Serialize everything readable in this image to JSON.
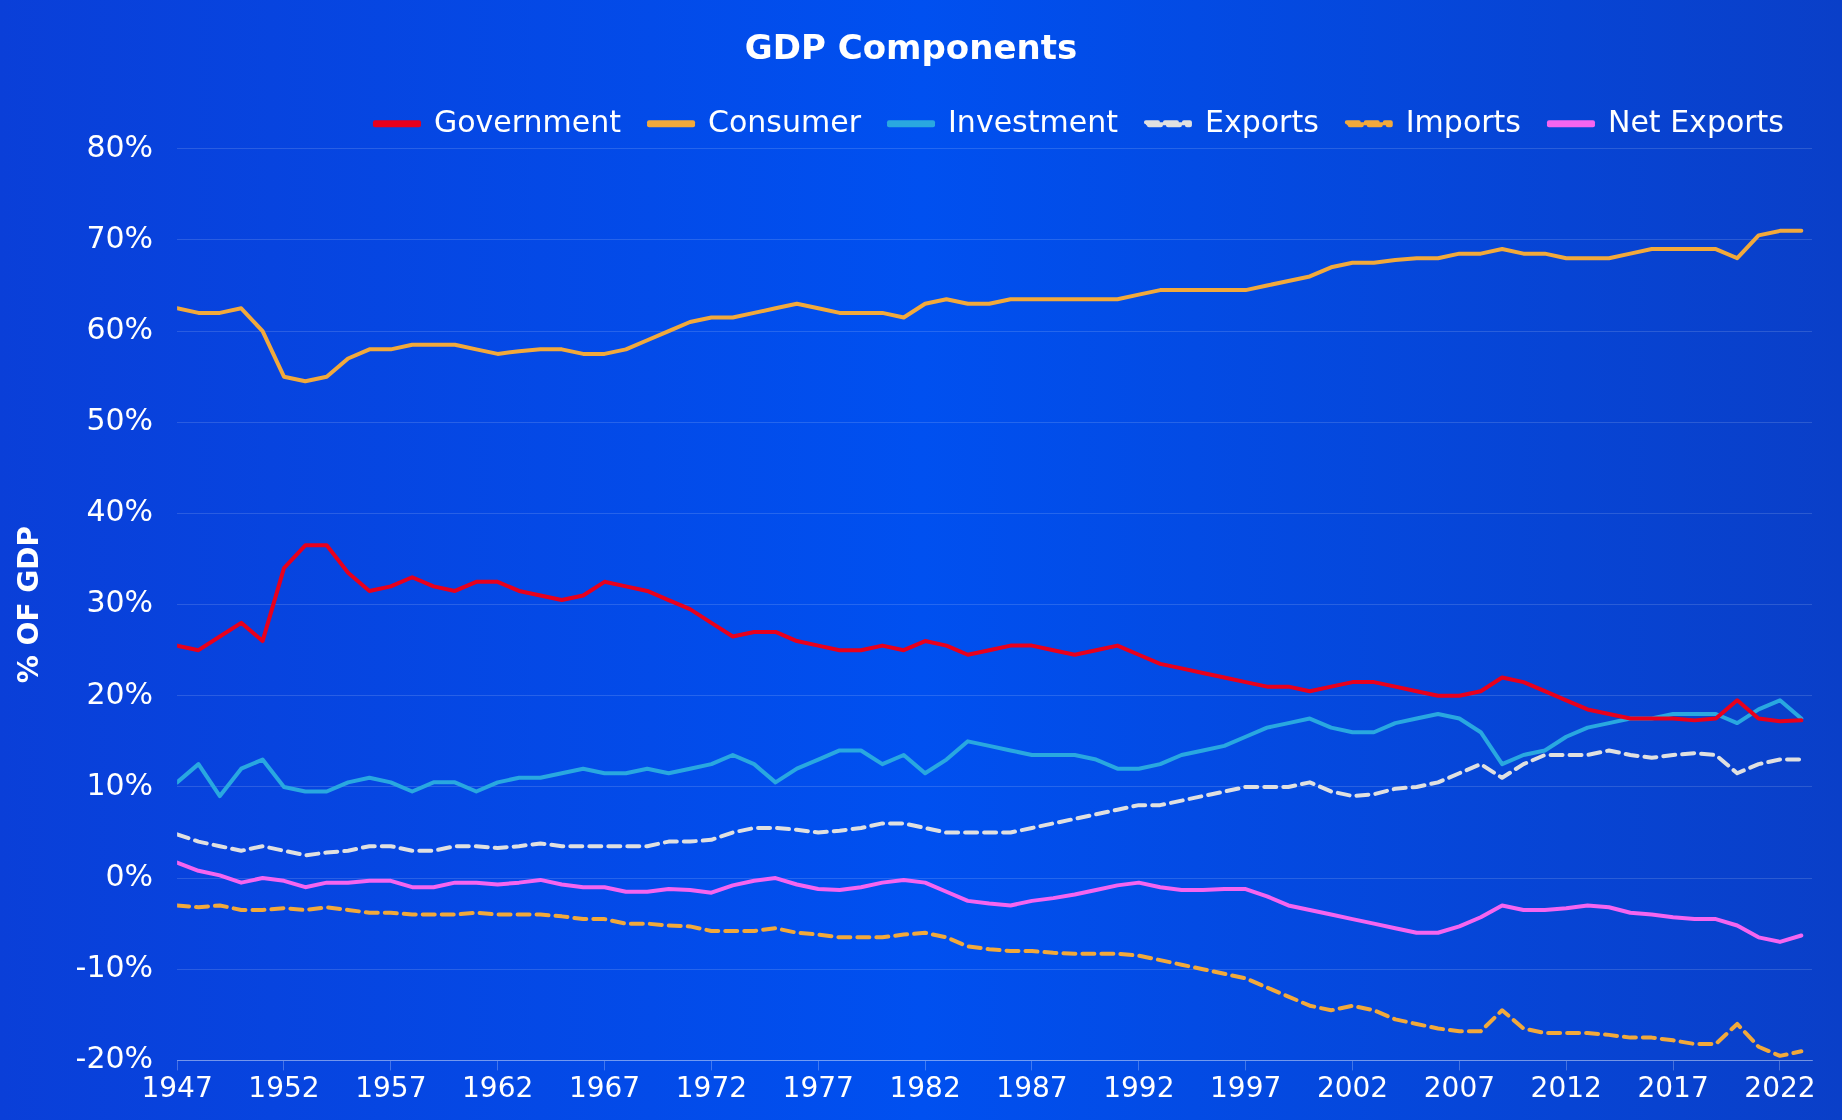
{
  "chart_data": {
    "type": "line",
    "title": "GDP Components",
    "ylabel": "% OF GDP",
    "x": [
      1947,
      1948,
      1949,
      1950,
      1951,
      1952,
      1953,
      1954,
      1955,
      1956,
      1957,
      1958,
      1959,
      1960,
      1961,
      1962,
      1963,
      1964,
      1965,
      1966,
      1967,
      1968,
      1969,
      1970,
      1971,
      1972,
      1973,
      1974,
      1975,
      1976,
      1977,
      1978,
      1979,
      1980,
      1981,
      1982,
      1983,
      1984,
      1985,
      1986,
      1987,
      1988,
      1989,
      1990,
      1991,
      1992,
      1993,
      1994,
      1995,
      1996,
      1997,
      1998,
      1999,
      2000,
      2001,
      2002,
      2003,
      2004,
      2005,
      2006,
      2007,
      2008,
      2009,
      2010,
      2011,
      2012,
      2013,
      2014,
      2015,
      2016,
      2017,
      2018,
      2019,
      2020,
      2021,
      2022,
      2023
    ],
    "xlim": [
      1947,
      2023.5
    ],
    "xticks": [
      1947,
      1952,
      1957,
      1962,
      1967,
      1972,
      1977,
      1982,
      1987,
      1992,
      1997,
      2002,
      2007,
      2012,
      2017,
      2022
    ],
    "ylim": [
      -20,
      80
    ],
    "yticks": [
      {
        "value": -20,
        "label": "-20%"
      },
      {
        "value": -10,
        "label": "-10%"
      },
      {
        "value": 0,
        "label": "0%"
      },
      {
        "value": 10,
        "label": "10%"
      },
      {
        "value": 20,
        "label": "20%"
      },
      {
        "value": 30,
        "label": "30%"
      },
      {
        "value": 40,
        "label": "40%"
      },
      {
        "value": 50,
        "label": "50%"
      },
      {
        "value": 60,
        "label": "60%"
      },
      {
        "value": 70,
        "label": "70%"
      },
      {
        "value": 80,
        "label": "80%"
      }
    ],
    "grid": "y",
    "legend": "top",
    "marker": "none",
    "series": [
      {
        "name": "Government",
        "color": "#e8001c",
        "line_style": "solid",
        "values": [
          25.5,
          25,
          26.5,
          28,
          26,
          34,
          36.5,
          36.5,
          33.5,
          31.5,
          32,
          33,
          32,
          31.5,
          32.5,
          32.5,
          31.5,
          31,
          30.5,
          31,
          32.5,
          32,
          31.5,
          30.5,
          29.5,
          28,
          26.5,
          27,
          27,
          26,
          25.5,
          25,
          25,
          25.5,
          25,
          26,
          25.5,
          24.5,
          25,
          25.5,
          25.5,
          25,
          24.5,
          25,
          25.5,
          24.5,
          23.5,
          23,
          22.5,
          22,
          21.5,
          21,
          21,
          20.5,
          21,
          21.5,
          21.5,
          21,
          20.5,
          20,
          20,
          20.5,
          22,
          21.5,
          20.5,
          19.5,
          18.5,
          18,
          17.5,
          17.5,
          17.5,
          17.3,
          17.5,
          19.5,
          17.5,
          17.2,
          17.3
        ]
      },
      {
        "name": "Consumer",
        "color": "#f2a93b",
        "line_style": "solid",
        "values": [
          62.5,
          62,
          62,
          62.5,
          60,
          55,
          54.5,
          55,
          57,
          58,
          58,
          58.5,
          58.5,
          58.5,
          58,
          57.5,
          57.8,
          58,
          58,
          57.5,
          57.5,
          58,
          59,
          60,
          61,
          61.5,
          61.5,
          62,
          62.5,
          63,
          62.5,
          62,
          62,
          62,
          61.5,
          63,
          63.5,
          63,
          63,
          63.5,
          63.5,
          63.5,
          63.5,
          63.5,
          63.5,
          64,
          64.5,
          64.5,
          64.5,
          64.5,
          64.5,
          65,
          65.5,
          66,
          67,
          67.5,
          67.5,
          67.8,
          68,
          68,
          68.5,
          68.5,
          69,
          68.5,
          68.5,
          68,
          68,
          68,
          68.5,
          69,
          69,
          69,
          69,
          68,
          70.5,
          71,
          71
        ]
      },
      {
        "name": "Investment",
        "color": "#29a8e0",
        "line_style": "solid",
        "values": [
          10.5,
          12.5,
          9,
          12,
          13,
          10,
          9.5,
          9.5,
          10.5,
          11,
          10.5,
          9.5,
          10.5,
          10.5,
          9.5,
          10.5,
          11,
          11,
          11.5,
          12,
          11.5,
          11.5,
          12,
          11.5,
          12,
          12.5,
          13.5,
          12.5,
          10.5,
          12,
          13,
          14,
          14,
          12.5,
          13.5,
          11.5,
          13,
          15,
          14.5,
          14,
          13.5,
          13.5,
          13.5,
          13,
          12,
          12,
          12.5,
          13.5,
          14,
          14.5,
          15.5,
          16.5,
          17,
          17.5,
          16.5,
          16,
          16,
          17,
          17.5,
          18,
          17.5,
          16,
          12.5,
          13.5,
          14,
          15.5,
          16.5,
          17,
          17.5,
          17.5,
          18,
          18,
          18,
          17,
          18.5,
          19.5,
          17.5
        ]
      },
      {
        "name": "Exports",
        "color": "#e0e0e0",
        "line_style": "dashed",
        "values": [
          4.8,
          4,
          3.5,
          3,
          3.5,
          3,
          2.5,
          2.8,
          3,
          3.5,
          3.5,
          3,
          3,
          3.5,
          3.5,
          3.3,
          3.5,
          3.8,
          3.5,
          3.5,
          3.5,
          3.5,
          3.5,
          4,
          4,
          4.2,
          5,
          5.5,
          5.5,
          5.3,
          5,
          5.2,
          5.5,
          6,
          6,
          5.5,
          5,
          5,
          5,
          5,
          5.5,
          6,
          6.5,
          7,
          7.5,
          8,
          8,
          8.5,
          9,
          9.5,
          10,
          10,
          10,
          10.5,
          9.5,
          9,
          9.2,
          9.8,
          10,
          10.5,
          11.5,
          12.5,
          11,
          12.5,
          13.5,
          13.5,
          13.5,
          14,
          13.5,
          13.2,
          13.5,
          13.7,
          13.5,
          11.5,
          12.5,
          13,
          13
        ]
      },
      {
        "name": "Imports",
        "color": "#f2a93b",
        "line_style": "dashed",
        "values": [
          -3,
          -3.2,
          -3,
          -3.5,
          -3.5,
          -3.3,
          -3.5,
          -3.2,
          -3.5,
          -3.8,
          -3.8,
          -4,
          -4,
          -4,
          -3.8,
          -4,
          -4,
          -4,
          -4.2,
          -4.5,
          -4.5,
          -5,
          -5,
          -5.2,
          -5.3,
          -5.8,
          -5.8,
          -5.8,
          -5.5,
          -6,
          -6.2,
          -6.5,
          -6.5,
          -6.5,
          -6.2,
          -6,
          -6.5,
          -7.5,
          -7.8,
          -8,
          -8,
          -8.2,
          -8.3,
          -8.3,
          -8.3,
          -8.5,
          -9,
          -9.5,
          -10,
          -10.5,
          -11,
          -12,
          -13,
          -14,
          -14.5,
          -14,
          -14.5,
          -15.5,
          -16,
          -16.5,
          -16.8,
          -16.8,
          -14.5,
          -16.5,
          -17,
          -17,
          -17,
          -17.2,
          -17.5,
          -17.5,
          -17.8,
          -18.2,
          -18.2,
          -16,
          -18.5,
          -19.5,
          -19
        ]
      },
      {
        "name": "Net Exports",
        "color": "#f565f0",
        "line_style": "solid",
        "values": [
          1.7,
          0.8,
          0.3,
          -0.5,
          0,
          -0.3,
          -1,
          -0.5,
          -0.5,
          -0.3,
          -0.3,
          -1,
          -1,
          -0.5,
          -0.5,
          -0.7,
          -0.5,
          -0.2,
          -0.7,
          -1,
          -1,
          -1.5,
          -1.5,
          -1.2,
          -1.3,
          -1.6,
          -0.8,
          -0.3,
          0,
          -0.7,
          -1.2,
          -1.3,
          -1,
          -0.5,
          -0.2,
          -0.5,
          -1.5,
          -2.5,
          -2.8,
          -3,
          -2.5,
          -2.2,
          -1.8,
          -1.3,
          -0.8,
          -0.5,
          -1,
          -1.3,
          -1.3,
          -1.2,
          -1.2,
          -2,
          -3,
          -3.5,
          -4,
          -4.5,
          -5,
          -5.5,
          -6,
          -6,
          -5.3,
          -4.3,
          -3,
          -3.5,
          -3.5,
          -3.3,
          -3,
          -3.2,
          -3.8,
          -4,
          -4.3,
          -4.5,
          -4.5,
          -5.2,
          -6.5,
          -7,
          -6.3
        ]
      }
    ]
  }
}
